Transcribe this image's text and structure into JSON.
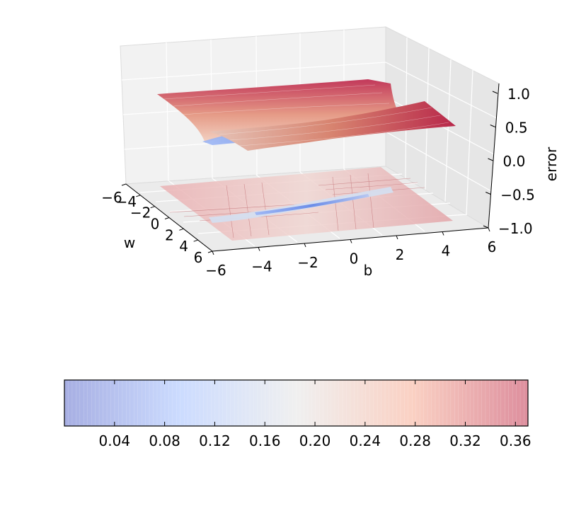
{
  "chart_data": [
    {
      "type": "surface3d",
      "title": "",
      "xlabel": "b",
      "ylabel": "w",
      "zlabel": "error",
      "xlim": [
        -6,
        6
      ],
      "ylim": [
        -6,
        6
      ],
      "zlim": [
        -1.0,
        1.0
      ],
      "x_ticks": [
        "−6",
        "−4",
        "−2",
        "0",
        "2",
        "4",
        "6"
      ],
      "y_ticks": [
        "−6",
        "−4",
        "−2",
        "0",
        "2",
        "4",
        "6"
      ],
      "z_ticks": [
        "−1.0",
        "−0.5",
        "0.0",
        "0.5",
        "1.0"
      ],
      "surface_z_range": [
        0.0,
        0.37
      ],
      "contour_projection_z": -1.0,
      "colormap": "coolwarm",
      "grid": true
    },
    {
      "type": "colorbar",
      "orientation": "horizontal",
      "range": [
        0.0,
        0.37
      ],
      "tick_values": [
        0.04,
        0.08,
        0.12,
        0.16,
        0.2,
        0.24,
        0.28,
        0.32,
        0.36
      ],
      "tick_labels": [
        "0.04",
        "0.08",
        "0.12",
        "0.16",
        "0.20",
        "0.24",
        "0.28",
        "0.32",
        "0.36"
      ],
      "colors": {
        "low": "#3b4cc0",
        "mid": "#dddddd",
        "high": "#b40426"
      }
    }
  ]
}
